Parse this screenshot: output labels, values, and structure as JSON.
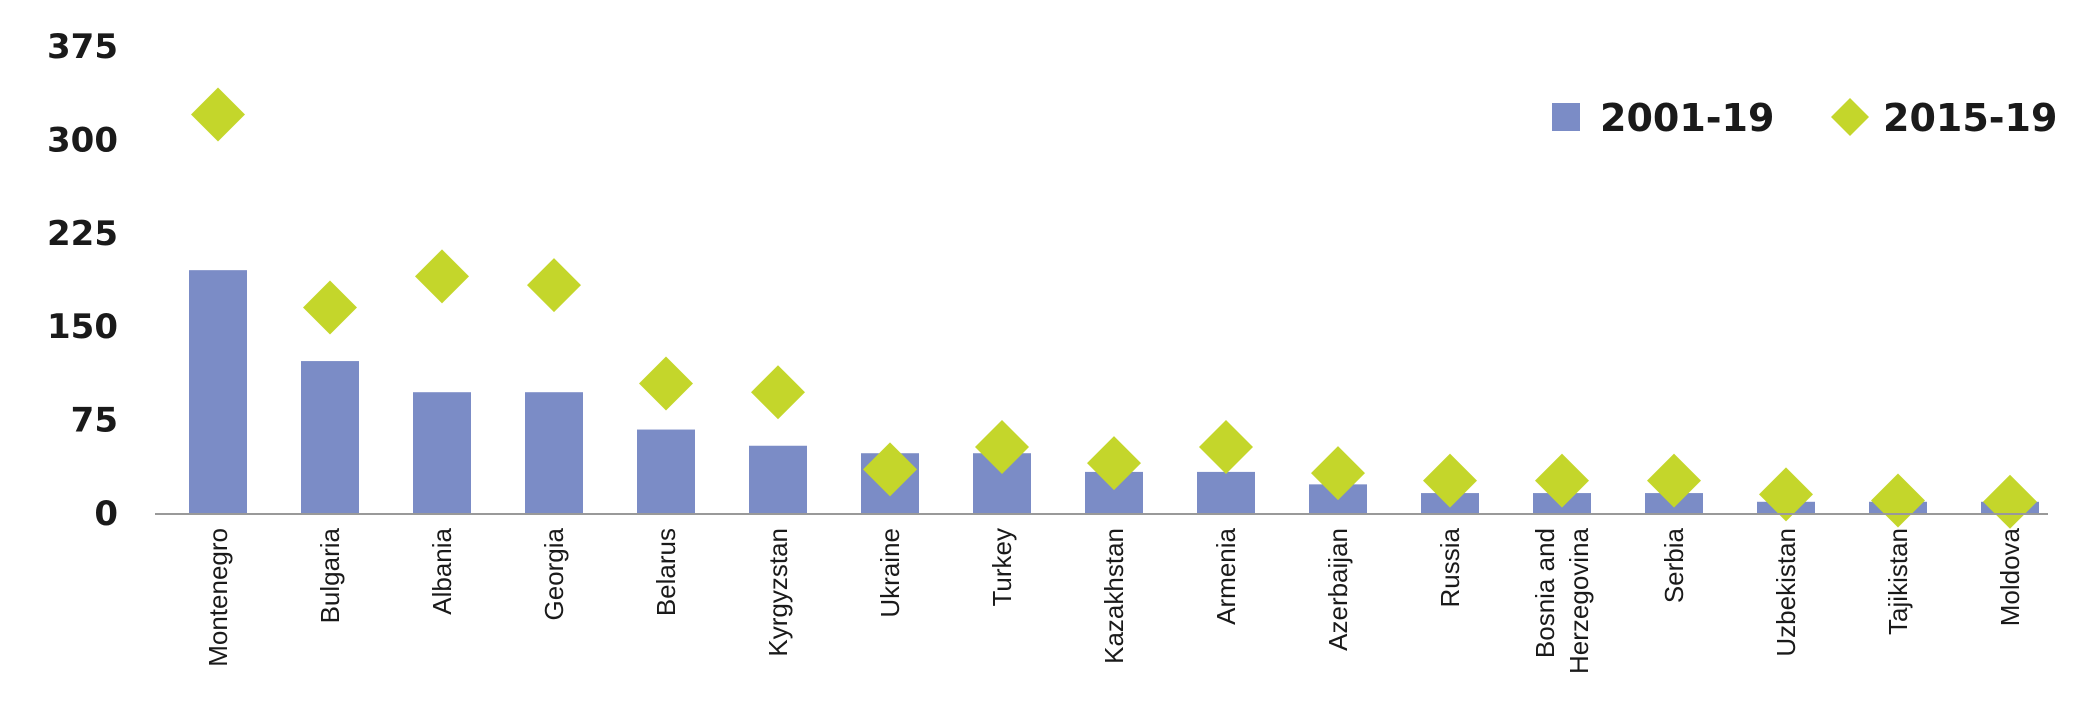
{
  "chart_data": {
    "type": "bar",
    "categories": [
      [
        "Montenegro"
      ],
      [
        "Bulgaria"
      ],
      [
        "Albania"
      ],
      [
        "Georgia"
      ],
      [
        "Belarus"
      ],
      [
        "Kyrgyzstan"
      ],
      [
        "Ukraine"
      ],
      [
        "Turkey"
      ],
      [
        "Kazakhstan"
      ],
      [
        "Armenia"
      ],
      [
        "Azerbaijan"
      ],
      [
        "Russia"
      ],
      [
        "Bosnia and",
        "Herzegovina"
      ],
      [
        "Serbia"
      ],
      [
        "Uzbekistan"
      ],
      [
        "Tajikistan"
      ],
      [
        "Moldova"
      ]
    ],
    "highlight_category": "Georgia",
    "series": [
      {
        "name": "2001-19",
        "kind": "bar",
        "color": "#7b8cc6",
        "values": [
          195,
          122,
          97,
          97,
          67,
          54,
          48,
          48,
          33,
          33,
          23,
          16,
          16,
          16,
          9,
          9,
          9
        ]
      },
      {
        "name": "2015-19",
        "kind": "diamond",
        "color": "#c4d62b",
        "values": [
          320,
          165,
          190,
          183,
          104,
          97,
          35,
          53,
          40,
          53,
          32,
          26,
          26,
          26,
          15,
          10,
          9
        ]
      }
    ],
    "yticks": [
      "0",
      "75",
      "150",
      "225",
      "300",
      "375"
    ],
    "ylim": [
      0,
      375
    ],
    "grid": false,
    "legend_position": "top-right",
    "colors": {
      "axis": "#999999",
      "text": "#1a1a1a",
      "highlight": "#e8262d"
    }
  }
}
